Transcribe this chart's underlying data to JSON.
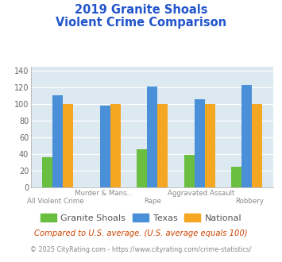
{
  "title_line1": "2019 Granite Shoals",
  "title_line2": "Violent Crime Comparison",
  "cat_labels_top": [
    "",
    "Murder & Mans...",
    "",
    "Aggravated Assault",
    ""
  ],
  "cat_labels_bot": [
    "All Violent Crime",
    "",
    "Rape",
    "",
    "Robbery"
  ],
  "granite_shoals": [
    36,
    0,
    46,
    39,
    25
  ],
  "texas": [
    111,
    98,
    121,
    106,
    123
  ],
  "national": [
    100,
    100,
    100,
    100,
    100
  ],
  "colors": {
    "granite_shoals": "#6abf40",
    "texas": "#4a90d9",
    "national": "#f5a623"
  },
  "ylim": [
    0,
    145
  ],
  "yticks": [
    0,
    20,
    40,
    60,
    80,
    100,
    120,
    140
  ],
  "title_color": "#2255cc",
  "axis_bg": "#dce9f0",
  "fig_bg": "#ffffff",
  "footnote1": "Compared to U.S. average. (U.S. average equals 100)",
  "footnote2": "© 2025 CityRating.com - https://www.cityrating.com/crime-statistics/",
  "footnote1_color": "#cc4400",
  "footnote2_color": "#888888",
  "legend_labels": [
    "Granite Shoals",
    "Texas",
    "National"
  ]
}
